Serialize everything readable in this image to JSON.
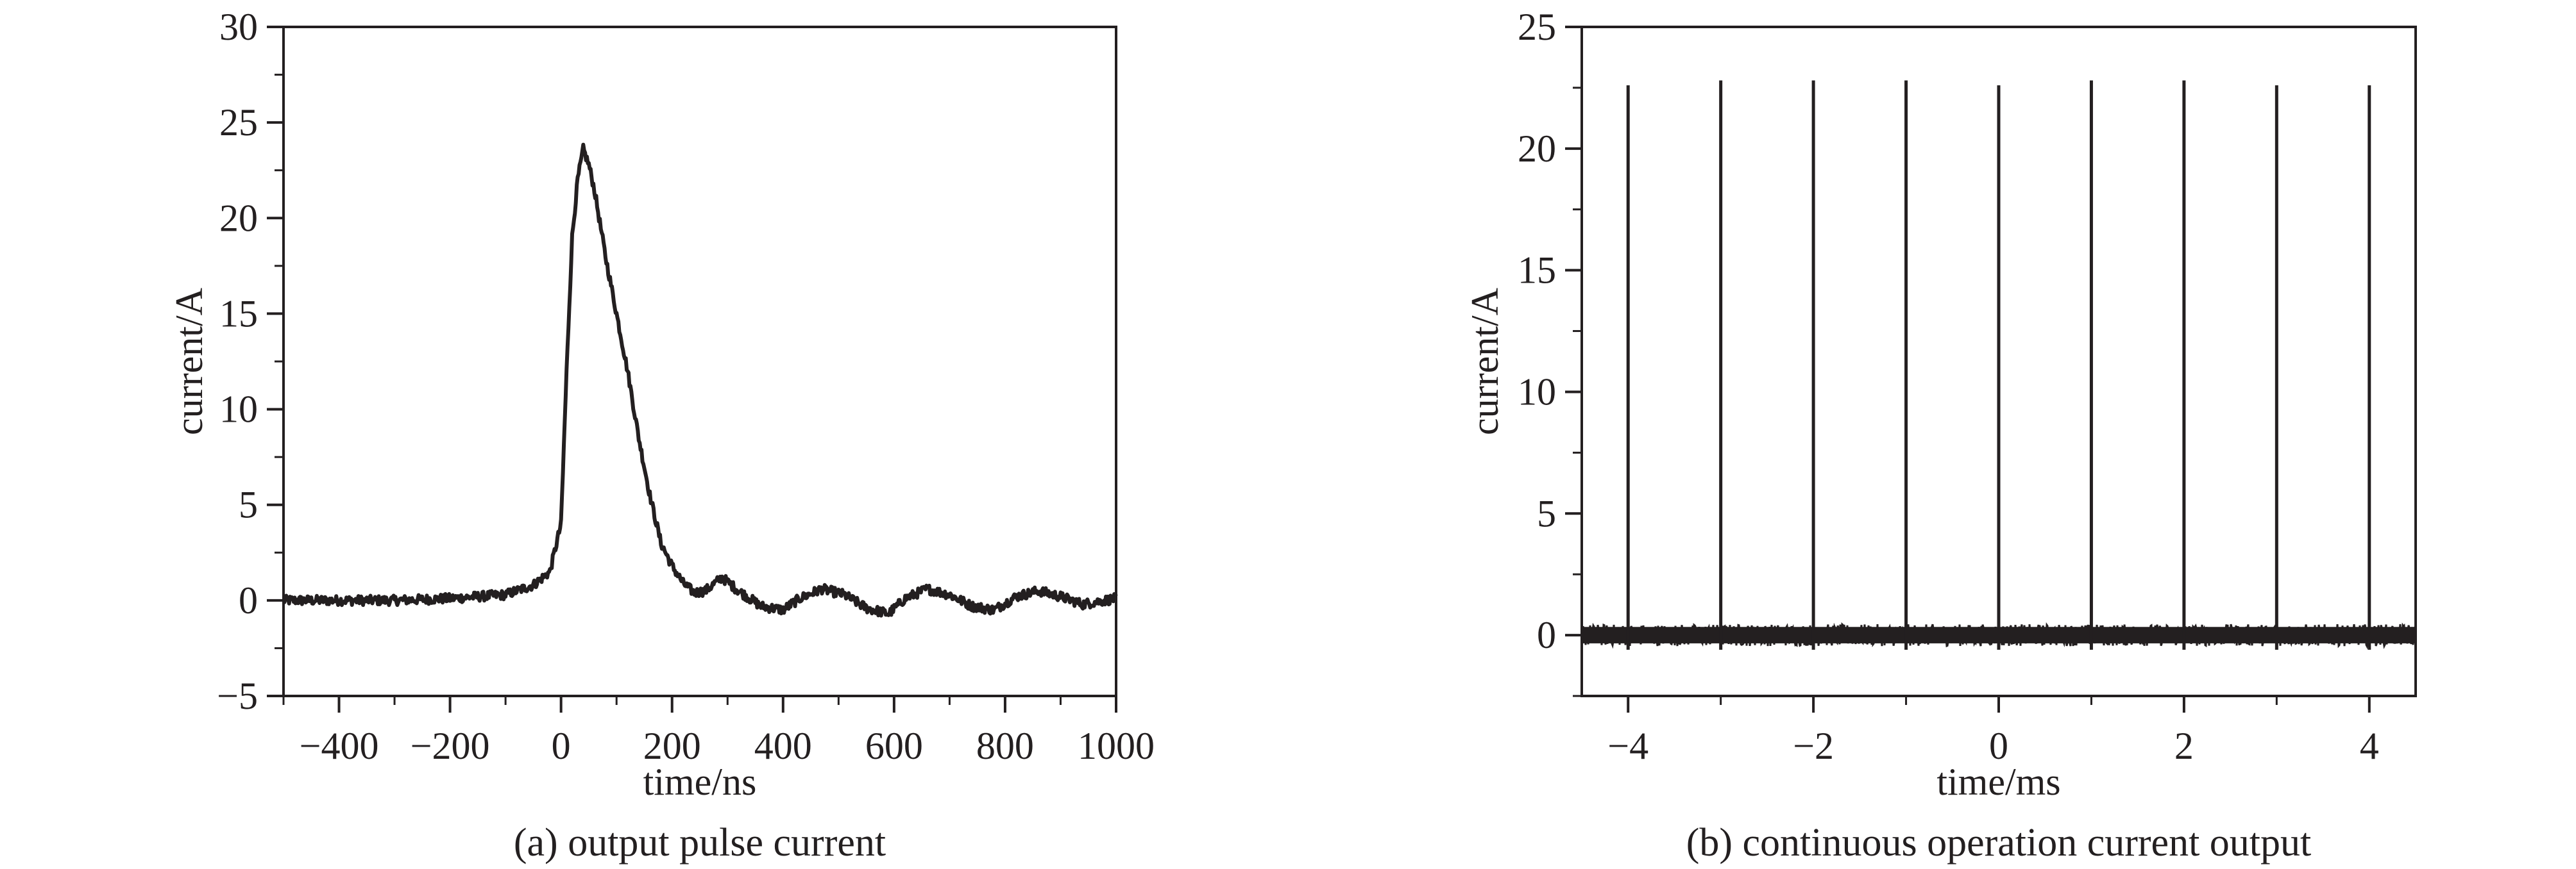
{
  "chart_data": [
    {
      "type": "line",
      "caption": "(a) output pulse current",
      "xlabel": "time/ns",
      "ylabel": "current/A",
      "xlim": [
        -500,
        1000
      ],
      "ylim": [
        -5,
        30
      ],
      "x_ticks": [
        -400,
        -200,
        0,
        200,
        400,
        600,
        800,
        1000
      ],
      "x_tick_labels": [
        "−400",
        "−200",
        "0",
        "200",
        "400",
        "600",
        "800",
        "1000"
      ],
      "y_ticks": [
        -5,
        0,
        5,
        10,
        15,
        20,
        25,
        30
      ],
      "y_tick_labels": [
        "−5",
        "0",
        "5",
        "10",
        "15",
        "20",
        "25",
        "30"
      ],
      "series": [
        {
          "color": "#231f20",
          "x": [
            -500,
            -300,
            -200,
            -100,
            -50,
            -20,
            0,
            10,
            20,
            30,
            40,
            50,
            60,
            80,
            100,
            120,
            140,
            160,
            180,
            200,
            220,
            240,
            260,
            290,
            320,
            360,
            400,
            430,
            470,
            510,
            550,
            590,
            620,
            660,
            700,
            740,
            780,
            820,
            860,
            900,
            940,
            980,
            1000
          ],
          "y": [
            0,
            0,
            0.1,
            0.3,
            0.8,
            1.5,
            4,
            12,
            19,
            22,
            23.6,
            22.8,
            21.5,
            18,
            15,
            12,
            8.5,
            5.5,
            3,
            1.8,
            0.9,
            0.4,
            0.5,
            1.2,
            0.5,
            -0.3,
            -0.5,
            0.1,
            0.6,
            0.3,
            -0.4,
            -0.7,
            0.1,
            0.6,
            0.3,
            -0.3,
            -0.5,
            0.2,
            0.5,
            0.2,
            -0.2,
            0,
            0.1
          ],
          "noise": 0.25
        }
      ],
      "grid": false
    },
    {
      "type": "line",
      "caption": "(b) continuous operation current output",
      "xlabel": "time/ms",
      "ylabel": "current/A",
      "xlim": [
        -4.5,
        4.5
      ],
      "ylim": [
        -2.5,
        25
      ],
      "x_ticks": [
        -4,
        -2,
        0,
        2,
        4
      ],
      "x_minor_ticks": [
        -3,
        -1,
        1,
        3
      ],
      "x_tick_labels": [
        "−4",
        "−2",
        "0",
        "2",
        "4"
      ],
      "y_ticks": [
        0,
        5,
        10,
        15,
        20,
        25
      ],
      "y_tick_labels": [
        "0",
        "5",
        "10",
        "15",
        "20",
        "25"
      ],
      "series": [
        {
          "color": "#231f20",
          "pulse_x": [
            -4,
            -3,
            -2,
            -1,
            0,
            1,
            2,
            3,
            4
          ],
          "pulse_y": [
            22.6,
            22.8,
            22.8,
            22.8,
            22.6,
            22.8,
            22.8,
            22.6,
            22.6
          ],
          "baseline": 0,
          "noise": 0.45
        }
      ],
      "grid": false
    }
  ]
}
